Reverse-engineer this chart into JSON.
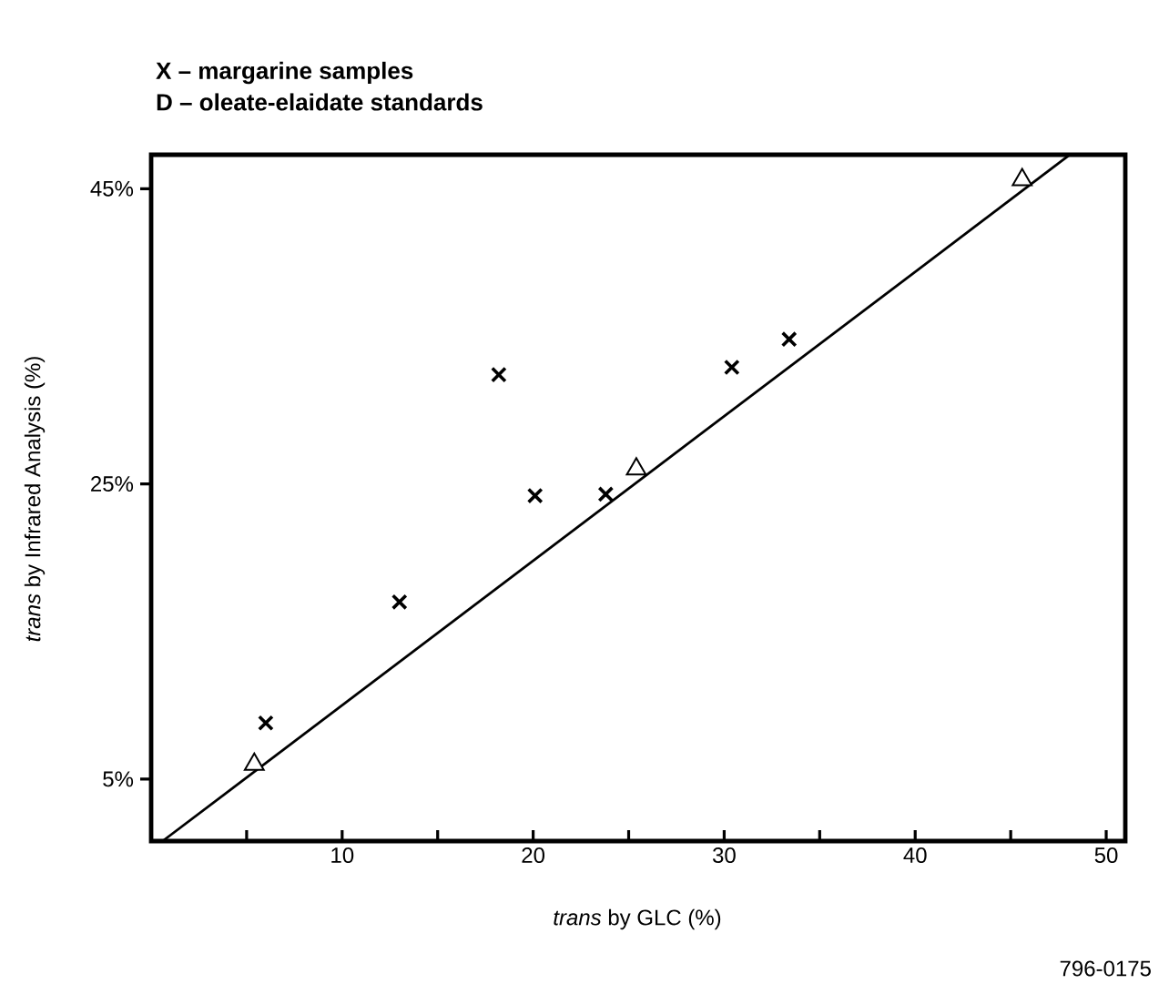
{
  "chart_data": {
    "type": "scatter",
    "annotations": [
      "X – margarine samples",
      "D – oleate-elaidate standards",
      "796-0175"
    ],
    "xlabel": "*trans* by GLC (%)",
    "ylabel": "*trans* by Infrared Analysis (%)",
    "xlim": [
      0,
      51
    ],
    "ylim": [
      0.8,
      47.3
    ],
    "xticks": [
      {
        "value": 5,
        "label": null
      },
      10,
      {
        "value": 15,
        "label": null
      },
      20,
      {
        "value": 25,
        "label": null
      },
      30,
      {
        "value": 35,
        "label": null
      },
      40,
      {
        "value": 45,
        "label": null
      },
      50
    ],
    "yticks": [
      {
        "value": 5,
        "label": "5%"
      },
      {
        "value": 25,
        "label": "25%"
      },
      {
        "value": 45,
        "label": "45%"
      }
    ],
    "series": [
      {
        "marker": "cross",
        "color": "#000000",
        "x": [
          6.0,
          13.0,
          18.2,
          20.1,
          23.8,
          30.4,
          33.4
        ],
        "values": [
          8.8,
          17.0,
          32.4,
          24.2,
          24.3,
          32.9,
          34.8
        ]
      },
      {
        "marker": "triangle",
        "color": "#000000",
        "x": [
          5.4,
          25.4,
          45.6
        ],
        "values": [
          6.0,
          26.0,
          45.6
        ]
      },
      {
        "type": "line",
        "marker": "none",
        "color": "#000000",
        "x": [
          0.6,
          48.1
        ],
        "values": [
          0.8,
          47.3
        ]
      }
    ]
  }
}
